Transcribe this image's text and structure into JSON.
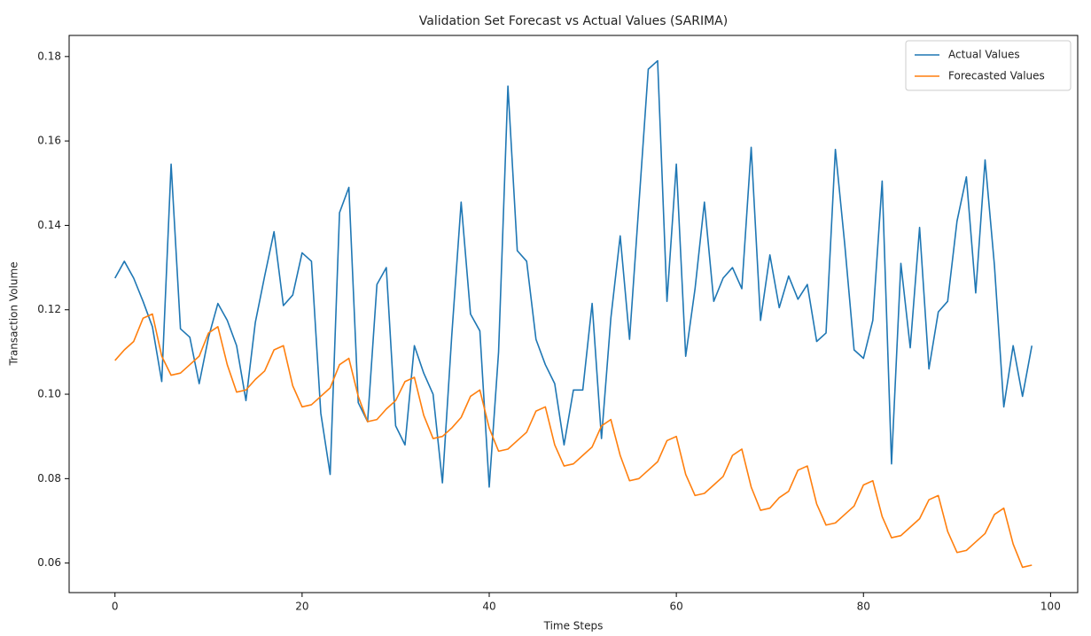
{
  "chart_data": {
    "type": "line",
    "title": "Validation Set Forecast vs Actual Values (SARIMA)",
    "x_label": "Time Steps",
    "y_label": "Transaction Volume",
    "x": [
      0,
      1,
      2,
      3,
      4,
      5,
      6,
      7,
      8,
      9,
      10,
      11,
      12,
      13,
      14,
      15,
      16,
      17,
      18,
      19,
      20,
      21,
      22,
      23,
      24,
      25,
      26,
      27,
      28,
      29,
      30,
      31,
      32,
      33,
      34,
      35,
      36,
      37,
      38,
      39,
      40,
      41,
      42,
      43,
      44,
      45,
      46,
      47,
      48,
      49,
      50,
      51,
      52,
      53,
      54,
      55,
      56,
      57,
      58,
      59,
      60,
      61,
      62,
      63,
      64,
      65,
      66,
      67,
      68,
      69,
      70,
      71,
      72,
      73,
      74,
      75,
      76,
      77,
      78,
      79,
      80,
      81,
      82,
      83,
      84,
      85,
      86,
      87,
      88,
      89,
      90,
      91,
      92,
      93,
      94,
      95,
      96,
      97,
      98
    ],
    "series": [
      {
        "name": "Actual Values",
        "color": "#1f77b4",
        "values": [
          0.1275,
          0.1315,
          0.1275,
          0.122,
          0.116,
          0.103,
          0.1545,
          0.1155,
          0.1135,
          0.1025,
          0.1135,
          0.1215,
          0.1175,
          0.1115,
          0.0985,
          0.117,
          0.128,
          0.1385,
          0.121,
          0.1235,
          0.1335,
          0.1315,
          0.0955,
          0.081,
          0.143,
          0.149,
          0.098,
          0.0935,
          0.126,
          0.13,
          0.0925,
          0.088,
          0.1115,
          0.105,
          0.1,
          0.079,
          0.114,
          0.1455,
          0.119,
          0.115,
          0.078,
          0.11,
          0.173,
          0.134,
          0.1315,
          0.113,
          0.107,
          0.1025,
          0.088,
          0.101,
          0.101,
          0.1215,
          0.0895,
          0.118,
          0.1375,
          0.113,
          0.145,
          0.177,
          0.179,
          0.122,
          0.1545,
          0.109,
          0.125,
          0.1455,
          0.122,
          0.1275,
          0.13,
          0.125,
          0.1585,
          0.1175,
          0.133,
          0.1205,
          0.128,
          0.1225,
          0.126,
          0.1125,
          0.1145,
          0.158,
          0.1355,
          0.1105,
          0.1085,
          0.1175,
          0.1505,
          0.0835,
          0.131,
          0.111,
          0.1395,
          0.106,
          0.1195,
          0.122,
          0.141,
          0.1515,
          0.124,
          0.1555,
          0.1305,
          0.097,
          0.1115,
          0.0995,
          0.1115
        ]
      },
      {
        "name": "Forecasted Values",
        "color": "#ff7f0e",
        "values": [
          0.108,
          0.1105,
          0.1125,
          0.118,
          0.119,
          0.109,
          0.1045,
          0.105,
          0.107,
          0.109,
          0.1145,
          0.116,
          0.107,
          0.1005,
          0.101,
          0.1035,
          0.1055,
          0.1105,
          0.1115,
          0.102,
          0.097,
          0.0975,
          0.0995,
          0.1015,
          0.107,
          0.1085,
          0.0995,
          0.0935,
          0.094,
          0.0965,
          0.0985,
          0.103,
          0.104,
          0.095,
          0.0895,
          0.09,
          0.092,
          0.0945,
          0.0995,
          0.101,
          0.092,
          0.0865,
          0.087,
          0.089,
          0.091,
          0.096,
          0.097,
          0.088,
          0.083,
          0.0835,
          0.0855,
          0.0875,
          0.0925,
          0.094,
          0.0855,
          0.0795,
          0.08,
          0.082,
          0.084,
          0.089,
          0.09,
          0.081,
          0.076,
          0.0765,
          0.0785,
          0.0805,
          0.0855,
          0.087,
          0.078,
          0.0725,
          0.073,
          0.0755,
          0.077,
          0.082,
          0.083,
          0.074,
          0.069,
          0.0695,
          0.0715,
          0.0735,
          0.0785,
          0.0795,
          0.071,
          0.066,
          0.0665,
          0.0685,
          0.0705,
          0.075,
          0.076,
          0.0675,
          0.0625,
          0.063,
          0.065,
          0.067,
          0.0715,
          0.073,
          0.0645,
          0.059,
          0.0595
        ]
      }
    ],
    "xlim": [
      -4.9,
      102.9
    ],
    "xticks": [
      0,
      20,
      40,
      60,
      80,
      100
    ],
    "ylim": [
      0.053,
      0.185
    ],
    "yticks": [
      0.06,
      0.08,
      {
        "value": 0.1,
        "label": "0.10"
      },
      0.12,
      0.14,
      0.16,
      0.18
    ],
    "grid": false,
    "legend": "upper right"
  }
}
